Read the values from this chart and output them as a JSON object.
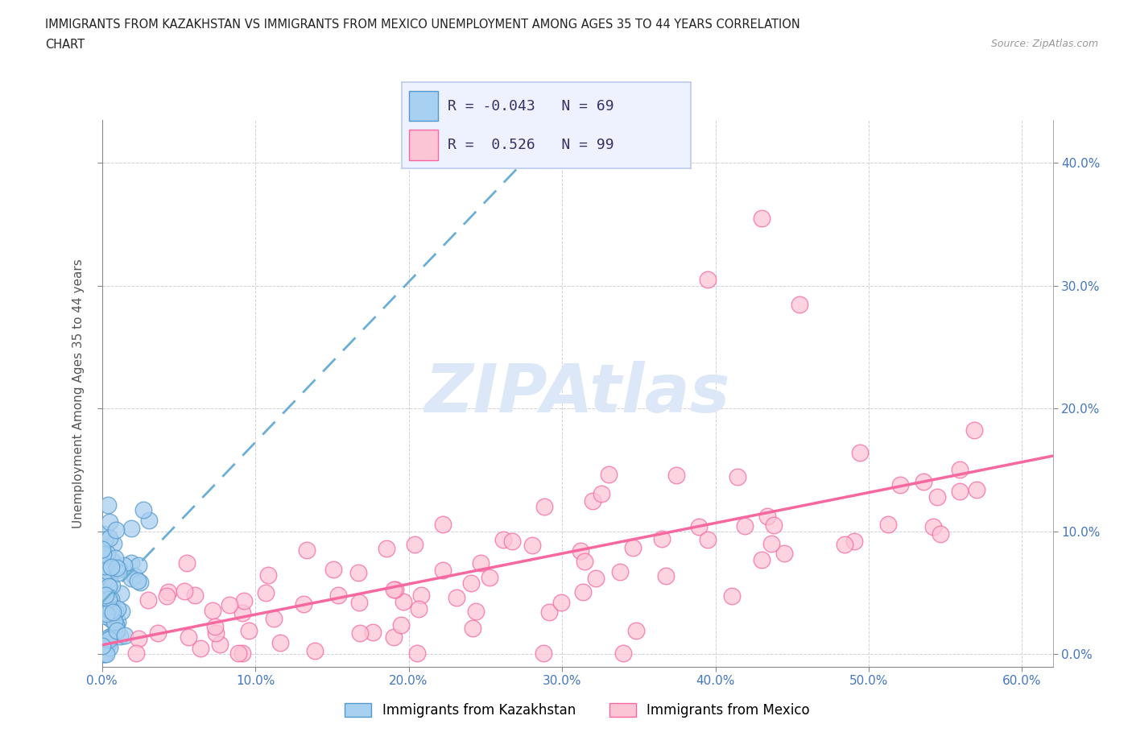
{
  "title_line1": "IMMIGRANTS FROM KAZAKHSTAN VS IMMIGRANTS FROM MEXICO UNEMPLOYMENT AMONG AGES 35 TO 44 YEARS CORRELATION",
  "title_line2": "CHART",
  "source_text": "Source: ZipAtlas.com",
  "ylabel": "Unemployment Among Ages 35 to 44 years",
  "xlim": [
    0.0,
    0.62
  ],
  "ylim": [
    -0.01,
    0.435
  ],
  "xticks": [
    0.0,
    0.1,
    0.2,
    0.3,
    0.4,
    0.5,
    0.6
  ],
  "yticks": [
    0.0,
    0.1,
    0.2,
    0.3,
    0.4
  ],
  "right_ytick_labels": [
    "0.0%",
    "10.0%",
    "20.0%",
    "30.0%",
    "40.0%"
  ],
  "xtick_labels": [
    "0.0%",
    "10.0%",
    "20.0%",
    "30.0%",
    "40.0%",
    "50.0%",
    "60.0%"
  ],
  "kazakhstan_line_color": "#6baed6",
  "kazakhstan_scatter_face": "#a8d0f0",
  "kazakhstan_scatter_edge": "#5599cc",
  "mexico_line_color": "#f768a1",
  "mexico_scatter_face": "#fcc5d5",
  "mexico_scatter_edge": "#f768a1",
  "kazakhstan_R": -0.043,
  "kazakhstan_N": 69,
  "mexico_R": 0.526,
  "mexico_N": 99,
  "background_color": "#ffffff",
  "grid_color": "#cccccc",
  "watermark_color": "#dce8f8",
  "legend_bg_color": "#eef2ff",
  "legend_border_color": "#bbccee",
  "label_kaz": "Immigrants from Kazakhstan",
  "label_mex": "Immigrants from Mexico",
  "tick_label_color": "#4477bb",
  "axis_color": "#888888",
  "title_color": "#222222",
  "source_color": "#999999",
  "ylabel_color": "#555555"
}
